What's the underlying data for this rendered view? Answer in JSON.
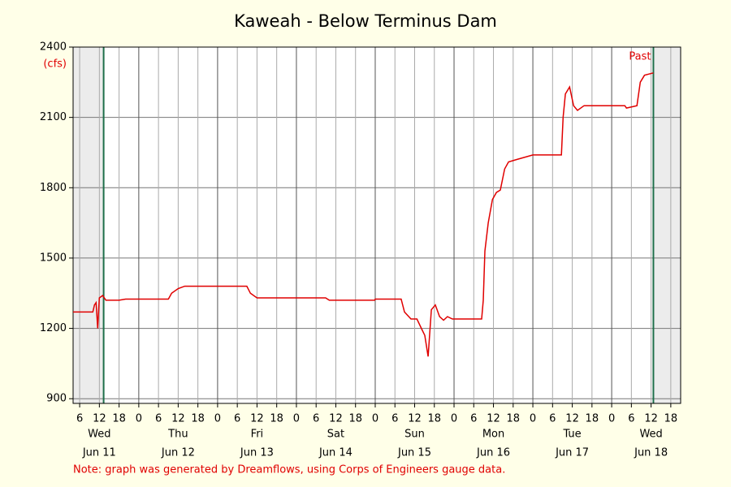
{
  "chart_data": {
    "type": "line",
    "title": "Kaweah - Below Terminus Dam",
    "y_unit": "(cfs)",
    "note": "Note: graph was generated by Dreamflows, using Corps of Engineers gauge data.",
    "past_label": "Past",
    "now_markers": [
      13.3,
      180.7
    ],
    "xlim": [
      4,
      189
    ],
    "ylim": [
      880,
      2400
    ],
    "yticks": [
      900,
      1200,
      1500,
      1800,
      2100,
      2400
    ],
    "grid": true,
    "xticks": [
      {
        "value": 6,
        "label": "6"
      },
      {
        "value": 12,
        "label": "12"
      },
      {
        "value": 18,
        "label": "18"
      },
      {
        "value": 24,
        "label": "0"
      },
      {
        "value": 30,
        "label": "6"
      },
      {
        "value": 36,
        "label": "12"
      },
      {
        "value": 42,
        "label": "18"
      },
      {
        "value": 48,
        "label": "0"
      },
      {
        "value": 54,
        "label": "6"
      },
      {
        "value": 60,
        "label": "12"
      },
      {
        "value": 66,
        "label": "18"
      },
      {
        "value": 72,
        "label": "0"
      },
      {
        "value": 78,
        "label": "6"
      },
      {
        "value": 84,
        "label": "12"
      },
      {
        "value": 90,
        "label": "18"
      },
      {
        "value": 96,
        "label": "0"
      },
      {
        "value": 102,
        "label": "6"
      },
      {
        "value": 108,
        "label": "12"
      },
      {
        "value": 114,
        "label": "18"
      },
      {
        "value": 120,
        "label": "0"
      },
      {
        "value": 126,
        "label": "6"
      },
      {
        "value": 132,
        "label": "12"
      },
      {
        "value": 138,
        "label": "18"
      },
      {
        "value": 144,
        "label": "0"
      },
      {
        "value": 150,
        "label": "6"
      },
      {
        "value": 156,
        "label": "12"
      },
      {
        "value": 162,
        "label": "18"
      },
      {
        "value": 168,
        "label": "0"
      },
      {
        "value": 174,
        "label": "6"
      },
      {
        "value": 180,
        "label": "12"
      },
      {
        "value": 186,
        "label": "18"
      }
    ],
    "day_labels": [
      {
        "value": 12,
        "weekday": "Wed",
        "date": "Jun 11"
      },
      {
        "value": 36,
        "weekday": "Thu",
        "date": "Jun 12"
      },
      {
        "value": 60,
        "weekday": "Fri",
        "date": "Jun 13"
      },
      {
        "value": 84,
        "weekday": "Sat",
        "date": "Jun 14"
      },
      {
        "value": 108,
        "weekday": "Sun",
        "date": "Jun 15"
      },
      {
        "value": 132,
        "weekday": "Mon",
        "date": "Jun 16"
      },
      {
        "value": 156,
        "weekday": "Tue",
        "date": "Jun 17"
      },
      {
        "value": 180,
        "weekday": "Wed",
        "date": "Jun 18"
      }
    ],
    "x": [
      4,
      10,
      10.5,
      11,
      11.5,
      12,
      13,
      14,
      18,
      20,
      33,
      34,
      36,
      38,
      56.9,
      58,
      60,
      80.9,
      82,
      95.8,
      96,
      103.9,
      104.9,
      106.9,
      108.7,
      110.4,
      111.1,
      112.1,
      113.1,
      114.3,
      115.6,
      116.8,
      118,
      119.5,
      128.4,
      128.9,
      129.4,
      130.4,
      131.7,
      132.9,
      134.1,
      135.4,
      136.6,
      139,
      144,
      152.7,
      153.2,
      153.9,
      155.2,
      156.4,
      157.6,
      159.6,
      172,
      172.5,
      175.7,
      176.7,
      178,
      180.7
    ],
    "series": [
      {
        "color": "#e00000",
        "values": [
          1270,
          1270,
          1300,
          1310,
          1200,
          1330,
          1340,
          1320,
          1320,
          1325,
          1325,
          1350,
          1370,
          1380,
          1380,
          1350,
          1330,
          1330,
          1320,
          1320,
          1325,
          1325,
          1270,
          1240,
          1240,
          1190,
          1170,
          1080,
          1280,
          1300,
          1250,
          1235,
          1250,
          1240,
          1240,
          1320,
          1530,
          1650,
          1750,
          1780,
          1790,
          1880,
          1910,
          1920,
          1940,
          1940,
          2100,
          2200,
          2230,
          2150,
          2130,
          2150,
          2150,
          2140,
          2150,
          2250,
          2280,
          2290
        ]
      }
    ]
  }
}
